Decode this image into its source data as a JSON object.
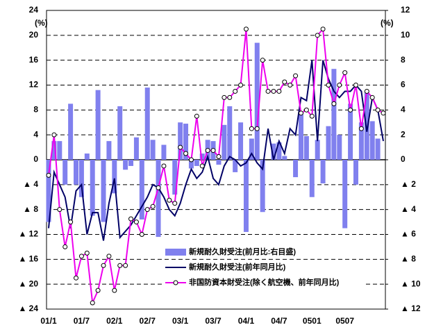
{
  "chart_data": {
    "type": "bar_line",
    "y_unit": "(%)",
    "y2_unit": "(%)",
    "categories": [
      "01/1",
      null,
      null,
      null,
      null,
      null,
      "01/7",
      null,
      null,
      null,
      null,
      null,
      "02/1",
      null,
      null,
      null,
      null,
      null,
      "02/7",
      null,
      null,
      null,
      null,
      null,
      "03/1",
      null,
      null,
      null,
      null,
      null,
      "03/7",
      null,
      null,
      null,
      null,
      null,
      "04/1",
      null,
      null,
      null,
      null,
      null,
      "04/7",
      null,
      null,
      null,
      null,
      null,
      "0501",
      null,
      null,
      null,
      null,
      null,
      "0507",
      null,
      null,
      null,
      null,
      null,
      null,
      null
    ],
    "ylim": [
      -24,
      24
    ],
    "yticks": [
      {
        "value": -24,
        "label": "▲ 24"
      },
      {
        "value": -20,
        "label": "▲ 20"
      },
      {
        "value": -16,
        "label": "▲ 16"
      },
      {
        "value": -12,
        "label": "▲ 12"
      },
      {
        "value": -8,
        "label": "▲ 8"
      },
      {
        "value": -4,
        "label": "▲ 4"
      },
      0,
      4,
      8,
      12,
      16,
      20,
      24
    ],
    "y2lim": [
      -12,
      12
    ],
    "y2ticks": [
      {
        "value": -12,
        "label": "▲ 12"
      },
      {
        "value": -10,
        "label": "▲ 10"
      },
      {
        "value": -8,
        "label": "▲ 8"
      },
      {
        "value": -6,
        "label": "▲ 6"
      },
      {
        "value": -4,
        "label": "▲ 4"
      },
      {
        "value": -2,
        "label": "▲ 2"
      },
      0,
      2,
      4,
      6,
      8,
      10,
      12
    ],
    "grid": true,
    "series": [
      {
        "name": "新規耐久財受注(前月比:右目盛)",
        "kind": "bar",
        "axis": "y2",
        "color": "#8080ee",
        "values": [
          -5,
          1.5,
          1.5,
          -2,
          4.5,
          -2,
          -3,
          0.5,
          -4.5,
          5.6,
          -5,
          1.5,
          -2.7,
          4.3,
          -0.8,
          -0.5,
          1.8,
          -4.8,
          5.8,
          1.6,
          -6.2,
          1.2,
          0,
          -2.8,
          3,
          2.9,
          -0.7,
          -0.5,
          0.5,
          1.6,
          1.5,
          -0.4,
          2.8,
          4.3,
          -1,
          3,
          -5.8,
          1.7,
          9.4,
          -4.2,
          0,
          1.3,
          1.4,
          0.3,
          0,
          -1.4,
          3.8,
          1.9,
          -3,
          1.6,
          -1.9,
          2.7,
          7.3,
          2,
          -5.5,
          4.5,
          -2,
          3,
          5.4,
          3.1,
          1.7,
          0
        ]
      },
      {
        "name": "新規耐久財受注(前年同月比)",
        "kind": "line",
        "color": "#000066",
        "values": [
          -11,
          -2,
          -4,
          -6,
          -11,
          -5,
          -4,
          -12,
          -8.5,
          -8.5,
          -13,
          -7,
          -3,
          -12.5,
          -11.5,
          -10.5,
          -9,
          -7.5,
          -6,
          -4,
          -4.5,
          -6,
          -8,
          -9,
          -7,
          -4,
          -1.5,
          -3,
          -2,
          0.5,
          -3,
          -4,
          -1,
          0.5,
          0,
          -1,
          -0.5,
          1,
          -0.5,
          -1.5,
          5,
          0,
          3,
          1,
          5,
          4,
          10,
          9.5,
          16,
          3,
          16,
          13,
          11,
          10,
          11,
          11,
          12,
          11,
          4.5,
          10,
          8,
          3
        ]
      },
      {
        "name": "非国防資本財受注(除く航空機、前年同月比)",
        "kind": "line",
        "color": "#ee00ee",
        "marker": "circle",
        "values": [
          -2.5,
          4,
          -8,
          -14,
          -10,
          -19,
          -15.5,
          -15,
          -23,
          -21,
          -17,
          -15.5,
          -21,
          -17,
          -17,
          -9.5,
          -10,
          -12,
          -8,
          -7.5,
          -4.5,
          -1,
          -6.5,
          -7,
          2,
          1,
          0,
          7,
          -1,
          1.5,
          1.5,
          0.5,
          10,
          10,
          11,
          12,
          21,
          5,
          5,
          16,
          11,
          11,
          11,
          12.5,
          12,
          13.5,
          7.5,
          8,
          7,
          20,
          21,
          12,
          9,
          12,
          14,
          8,
          12,
          5,
          11,
          10,
          8,
          7.5
        ]
      }
    ]
  }
}
